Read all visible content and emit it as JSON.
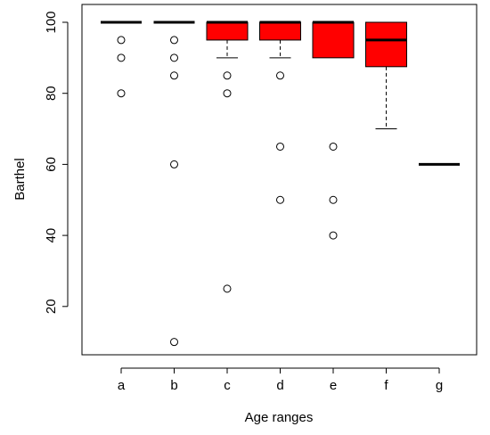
{
  "chart_data": {
    "type": "box",
    "xlabel": "Age ranges",
    "ylabel": "Barthel",
    "y_ticks": [
      20,
      40,
      60,
      80,
      100
    ],
    "ylim": [
      5,
      102
    ],
    "box_color": "#ff0000",
    "categories": [
      "a",
      "b",
      "c",
      "d",
      "e",
      "f",
      "g"
    ],
    "boxes": [
      {
        "label": "a",
        "q1": 100,
        "median": 100,
        "q3": 100,
        "whisker_low": 100,
        "whisker_high": 100,
        "outliers": [
          95,
          90,
          80
        ]
      },
      {
        "label": "b",
        "q1": 100,
        "median": 100,
        "q3": 100,
        "whisker_low": 100,
        "whisker_high": 100,
        "outliers": [
          95,
          90,
          85,
          60,
          10
        ]
      },
      {
        "label": "c",
        "q1": 95,
        "median": 100,
        "q3": 100,
        "whisker_low": 90,
        "whisker_high": 100,
        "outliers": [
          85,
          80,
          25
        ]
      },
      {
        "label": "d",
        "q1": 95,
        "median": 100,
        "q3": 100,
        "whisker_low": 90,
        "whisker_high": 100,
        "outliers": [
          85,
          65,
          50
        ]
      },
      {
        "label": "e",
        "q1": 90,
        "median": 100,
        "q3": 100,
        "whisker_low": 90,
        "whisker_high": 100,
        "outliers": [
          65,
          50,
          40
        ]
      },
      {
        "label": "f",
        "q1": 87.5,
        "median": 95,
        "q3": 100,
        "whisker_low": 70,
        "whisker_high": 100,
        "outliers": []
      },
      {
        "label": "g",
        "q1": 60,
        "median": 60,
        "q3": 60,
        "whisker_low": 60,
        "whisker_high": 60,
        "outliers": []
      }
    ]
  }
}
